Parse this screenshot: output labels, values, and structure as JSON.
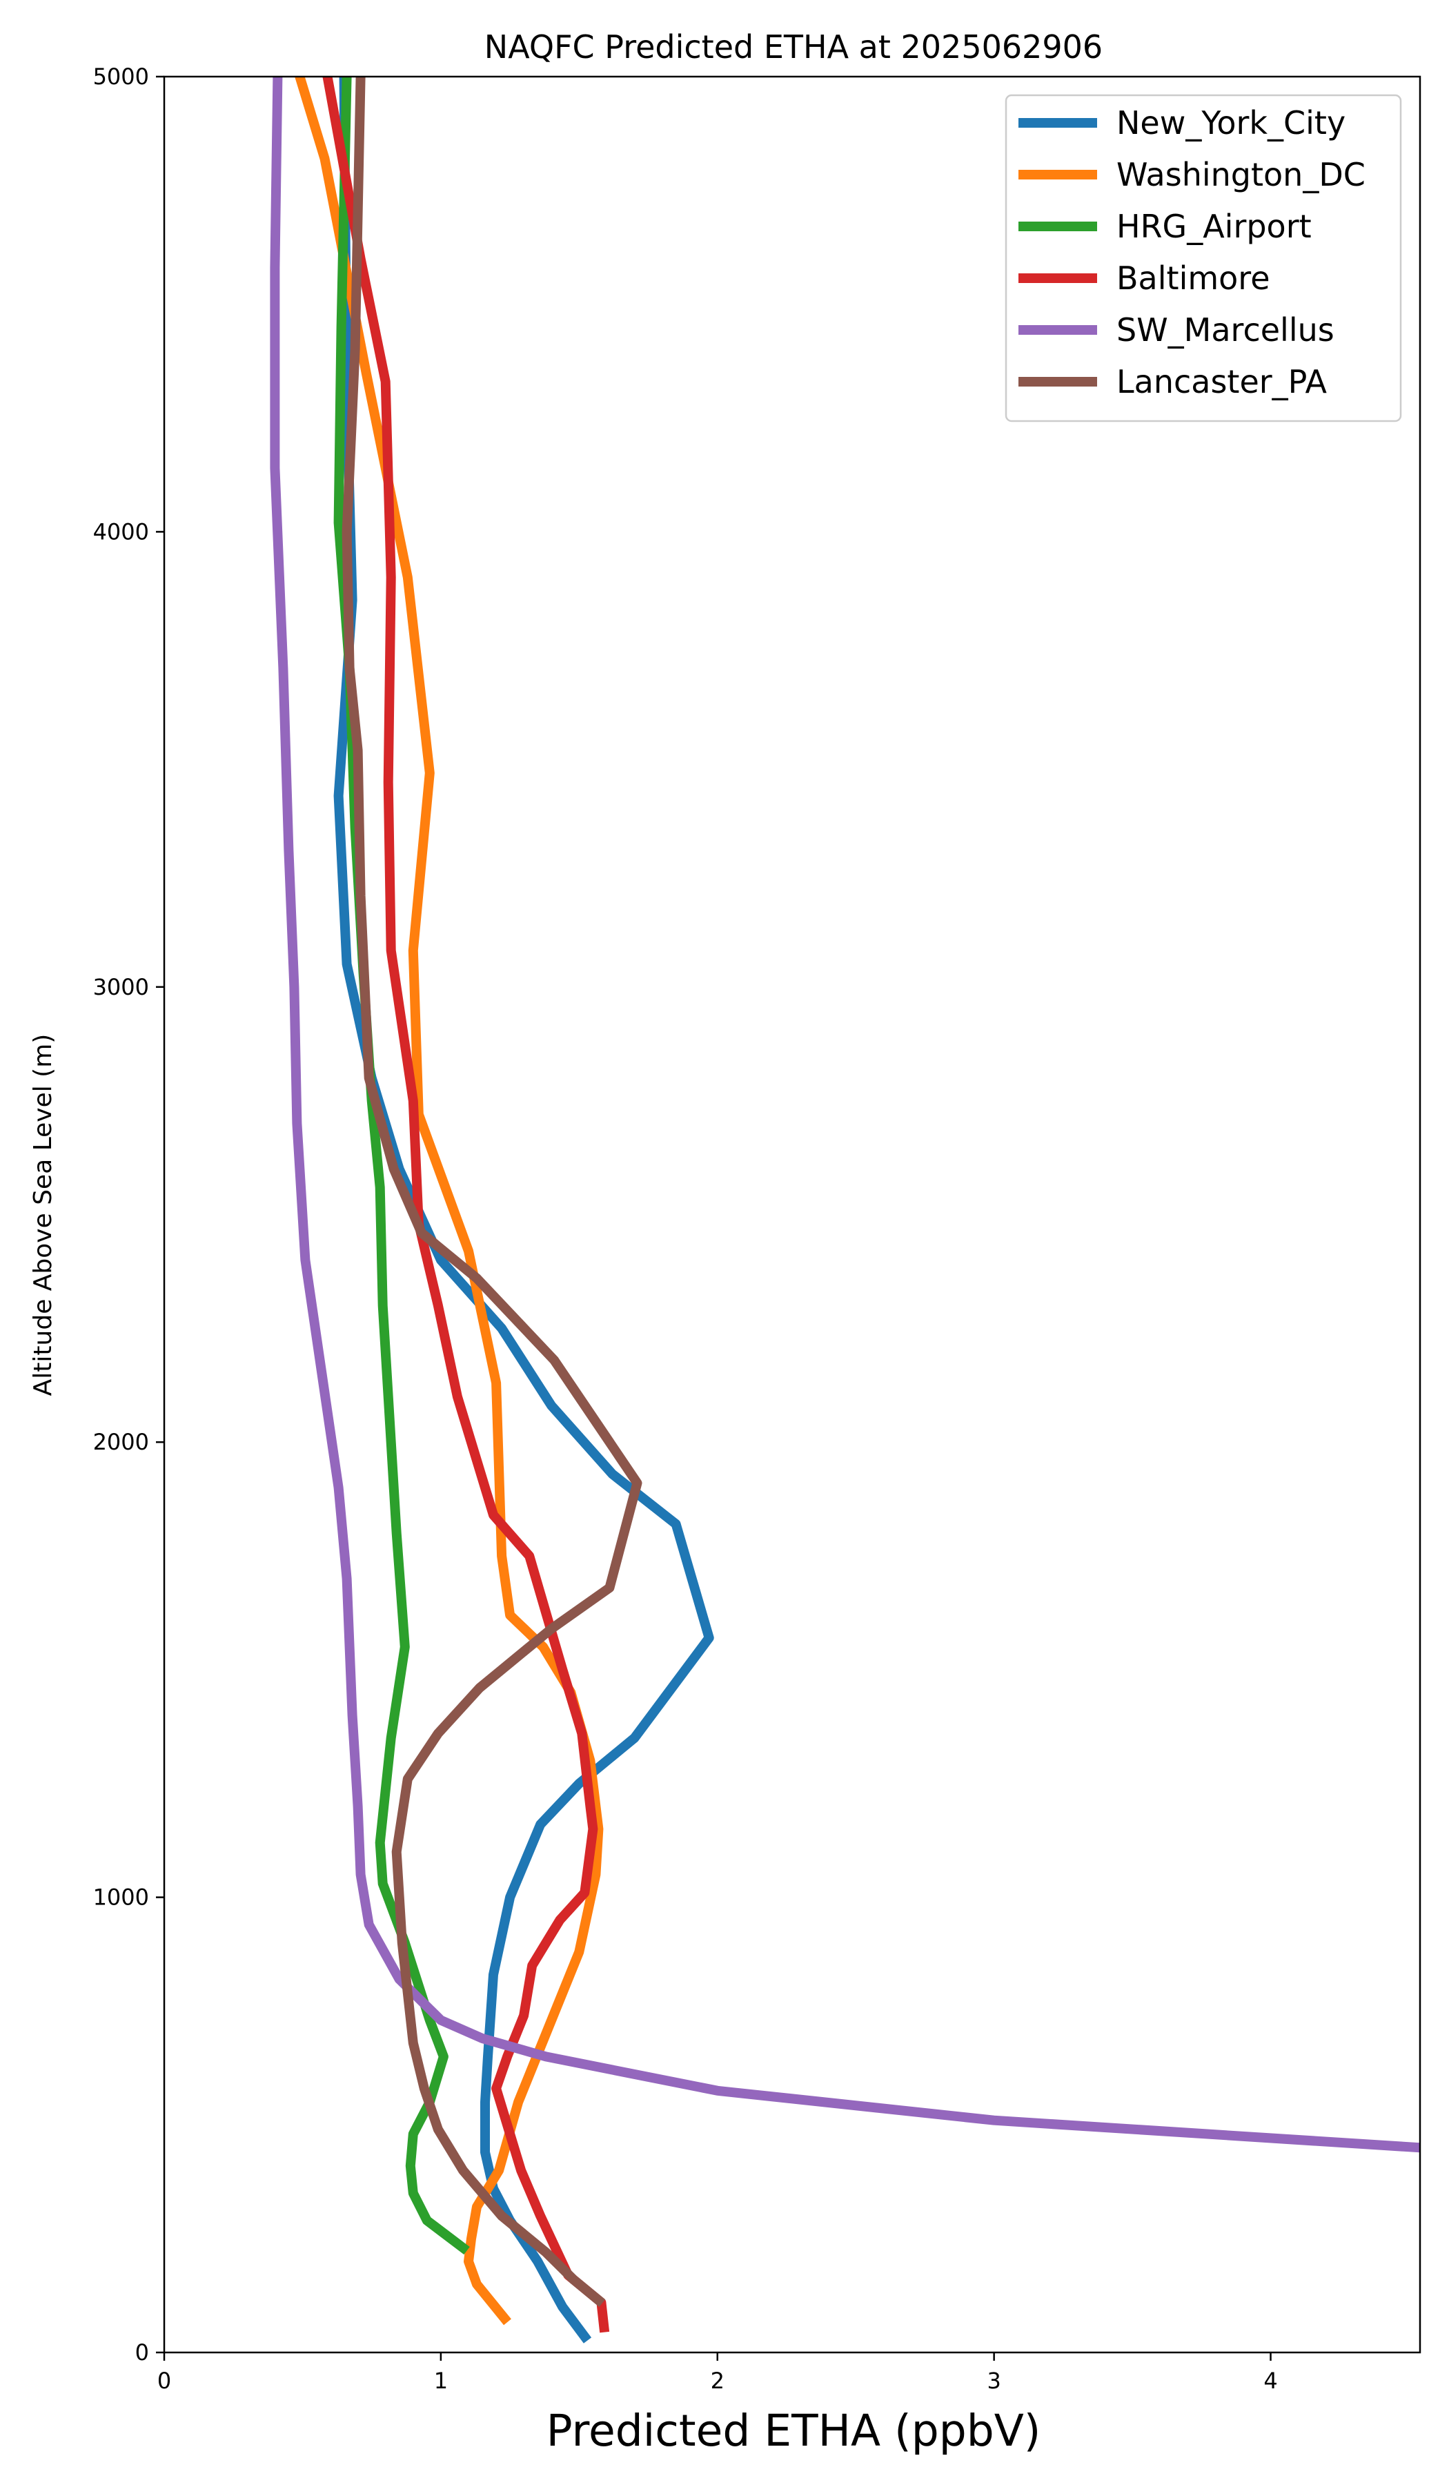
{
  "chart_data": {
    "type": "line",
    "title": "NAQFC Predicted ETHA at 2025062906",
    "xlabel": "Predicted ETHA (ppbV)",
    "ylabel": "Altitude Above Sea Level (m)",
    "xlim": [
      0,
      4.54
    ],
    "ylim": [
      0,
      5000
    ],
    "xticks": [
      0,
      1,
      2,
      3,
      4
    ],
    "yticks": [
      0,
      1000,
      2000,
      3000,
      4000,
      5000
    ],
    "grid": false,
    "legend_position": "top-right",
    "series": [
      {
        "name": "New_York_City",
        "color": "#1f77b4",
        "points": [
          [
            1.52,
            35
          ],
          [
            1.44,
            100
          ],
          [
            1.35,
            200
          ],
          [
            1.25,
            290
          ],
          [
            1.19,
            360
          ],
          [
            1.16,
            440
          ],
          [
            1.16,
            550
          ],
          [
            1.17,
            650
          ],
          [
            1.19,
            830
          ],
          [
            1.25,
            1000
          ],
          [
            1.36,
            1160
          ],
          [
            1.5,
            1250
          ],
          [
            1.7,
            1350
          ],
          [
            1.97,
            1570
          ],
          [
            1.85,
            1820
          ],
          [
            1.62,
            1930
          ],
          [
            1.4,
            2080
          ],
          [
            1.22,
            2250
          ],
          [
            1.0,
            2400
          ],
          [
            0.85,
            2600
          ],
          [
            0.75,
            2800
          ],
          [
            0.66,
            3050
          ],
          [
            0.63,
            3420
          ],
          [
            0.68,
            3850
          ],
          [
            0.66,
            4300
          ],
          [
            0.65,
            5000
          ]
        ]
      },
      {
        "name": "Washington_DC",
        "color": "#ff7f0e",
        "points": [
          [
            1.23,
            75
          ],
          [
            1.13,
            150
          ],
          [
            1.1,
            200
          ],
          [
            1.11,
            250
          ],
          [
            1.13,
            320
          ],
          [
            1.21,
            400
          ],
          [
            1.28,
            550
          ],
          [
            1.38,
            700
          ],
          [
            1.5,
            880
          ],
          [
            1.56,
            1050
          ],
          [
            1.57,
            1150
          ],
          [
            1.54,
            1300
          ],
          [
            1.47,
            1450
          ],
          [
            1.37,
            1550
          ],
          [
            1.25,
            1620
          ],
          [
            1.22,
            1750
          ],
          [
            1.2,
            2130
          ],
          [
            1.1,
            2420
          ],
          [
            0.92,
            2720
          ],
          [
            0.9,
            3080
          ],
          [
            0.96,
            3470
          ],
          [
            0.88,
            3900
          ],
          [
            0.73,
            4350
          ],
          [
            0.58,
            4820
          ],
          [
            0.49,
            5000
          ]
        ]
      },
      {
        "name": "HRG_Airport",
        "color": "#2ca02c",
        "points": [
          [
            1.08,
            230
          ],
          [
            0.95,
            290
          ],
          [
            0.9,
            350
          ],
          [
            0.89,
            410
          ],
          [
            0.9,
            480
          ],
          [
            0.96,
            550
          ],
          [
            1.01,
            650
          ],
          [
            0.96,
            730
          ],
          [
            0.87,
            900
          ],
          [
            0.79,
            1030
          ],
          [
            0.78,
            1120
          ],
          [
            0.82,
            1350
          ],
          [
            0.87,
            1550
          ],
          [
            0.84,
            1800
          ],
          [
            0.82,
            2000
          ],
          [
            0.79,
            2300
          ],
          [
            0.78,
            2560
          ],
          [
            0.75,
            2750
          ],
          [
            0.72,
            3030
          ],
          [
            0.69,
            3350
          ],
          [
            0.67,
            3700
          ],
          [
            0.63,
            4020
          ],
          [
            0.64,
            4450
          ],
          [
            0.66,
            5000
          ]
        ]
      },
      {
        "name": "Baltimore",
        "color": "#d62728",
        "points": [
          [
            1.59,
            55
          ],
          [
            1.58,
            110
          ],
          [
            1.46,
            170
          ],
          [
            1.36,
            300
          ],
          [
            1.29,
            400
          ],
          [
            1.24,
            500
          ],
          [
            1.2,
            580
          ],
          [
            1.24,
            650
          ],
          [
            1.3,
            740
          ],
          [
            1.33,
            850
          ],
          [
            1.43,
            950
          ],
          [
            1.52,
            1010
          ],
          [
            1.55,
            1150
          ],
          [
            1.54,
            1200
          ],
          [
            1.51,
            1360
          ],
          [
            1.44,
            1500
          ],
          [
            1.32,
            1750
          ],
          [
            1.19,
            1840
          ],
          [
            1.06,
            2100
          ],
          [
            0.99,
            2300
          ],
          [
            0.92,
            2480
          ],
          [
            0.9,
            2750
          ],
          [
            0.82,
            3080
          ],
          [
            0.81,
            3450
          ],
          [
            0.82,
            3900
          ],
          [
            0.8,
            4330
          ],
          [
            0.71,
            4600
          ],
          [
            0.59,
            5000
          ]
        ]
      },
      {
        "name": "SW_Marcellus",
        "color": "#9467bd",
        "points": [
          [
            4.54,
            450
          ],
          [
            3.0,
            510
          ],
          [
            2.0,
            575
          ],
          [
            1.38,
            650
          ],
          [
            1.15,
            690
          ],
          [
            1.0,
            730
          ],
          [
            0.85,
            820
          ],
          [
            0.74,
            940
          ],
          [
            0.71,
            1050
          ],
          [
            0.7,
            1200
          ],
          [
            0.68,
            1400
          ],
          [
            0.66,
            1700
          ],
          [
            0.63,
            1900
          ],
          [
            0.57,
            2150
          ],
          [
            0.51,
            2400
          ],
          [
            0.48,
            2700
          ],
          [
            0.47,
            3000
          ],
          [
            0.45,
            3300
          ],
          [
            0.43,
            3700
          ],
          [
            0.4,
            4140
          ],
          [
            0.4,
            4580
          ],
          [
            0.41,
            5000
          ]
        ]
      },
      {
        "name": "Lancaster_PA",
        "color": "#8c564b",
        "points": [
          [
            1.57,
            115
          ],
          [
            1.48,
            160
          ],
          [
            1.38,
            220
          ],
          [
            1.22,
            300
          ],
          [
            1.08,
            400
          ],
          [
            0.99,
            490
          ],
          [
            0.94,
            580
          ],
          [
            0.9,
            680
          ],
          [
            0.86,
            900
          ],
          [
            0.84,
            1100
          ],
          [
            0.88,
            1260
          ],
          [
            0.99,
            1360
          ],
          [
            1.14,
            1460
          ],
          [
            1.4,
            1590
          ],
          [
            1.61,
            1680
          ],
          [
            1.71,
            1910
          ],
          [
            1.41,
            2180
          ],
          [
            1.13,
            2360
          ],
          [
            0.93,
            2460
          ],
          [
            0.83,
            2600
          ],
          [
            0.74,
            2800
          ],
          [
            0.71,
            3200
          ],
          [
            0.7,
            3520
          ],
          [
            0.67,
            3700
          ],
          [
            0.66,
            4000
          ],
          [
            0.69,
            4400
          ],
          [
            0.71,
            5000
          ]
        ]
      }
    ]
  }
}
